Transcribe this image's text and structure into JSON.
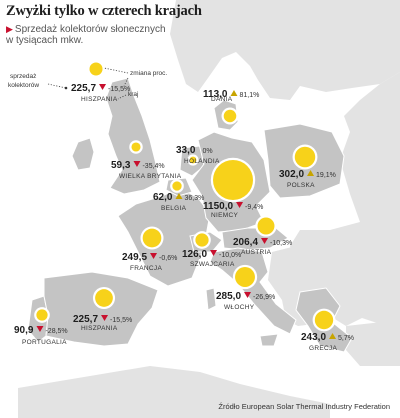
{
  "title": "Zwyżki tylko w czterech krajach",
  "subtitle_line1": "Sprzedaż kolektorów słonecznych",
  "subtitle_line2": "w tysiącach mkw.",
  "source": "Źródło European Solar Thermal Industry  Federation",
  "colors": {
    "sea": "#ffffff",
    "land_neighbor": "#e3e3e3",
    "land_country": "#c4c4c4",
    "bubble": "#f7d21a",
    "bubble_ring": "#ffffff",
    "increase": "#c7a400",
    "decrease": "#c8102e",
    "neutral": "#555555",
    "accent": "#c8102e"
  },
  "legend": {
    "sales_label_line1": "sprzedaż",
    "sales_label_line2": "kolektorów",
    "change_label": "zmiana proc.",
    "country_label": "kraj",
    "example": {
      "country": "HISZPANIA",
      "value": "225,7",
      "change": "-15,5%",
      "direction": "down"
    }
  },
  "map_data": {
    "unit": "tys. mkw.",
    "countries": [
      {
        "name": "DANIA",
        "value": "113,0",
        "change": "81,1%",
        "direction": "up"
      },
      {
        "name": "HOLANDIA",
        "value": "33,0",
        "change": "0%",
        "direction": "none"
      },
      {
        "name": "WIELKA BRYTANIA",
        "value": "59,3",
        "change": "-35,4%",
        "direction": "down"
      },
      {
        "name": "POLSKA",
        "value": "302,0",
        "change": "19,1%",
        "direction": "up"
      },
      {
        "name": "BELGIA",
        "value": "62,0",
        "change": "36,3%",
        "direction": "up"
      },
      {
        "name": "NIEMCY",
        "value": "1150,0",
        "change": "-9,4%",
        "direction": "down"
      },
      {
        "name": "AUSTRIA",
        "value": "206,4",
        "change": "-10,3%",
        "direction": "down"
      },
      {
        "name": "FRANCJA",
        "value": "249,5",
        "change": "-0,6%",
        "direction": "down"
      },
      {
        "name": "SZWAJCARIA",
        "value": "126,0",
        "change": "-10,0%",
        "direction": "down"
      },
      {
        "name": "WŁOCHY",
        "value": "285,0",
        "change": "-26,9%",
        "direction": "down"
      },
      {
        "name": "HISZPANIA",
        "value": "225,7",
        "change": "-15,5%",
        "direction": "down"
      },
      {
        "name": "PORTUGALIA",
        "value": "90,9",
        "change": "-28,5%",
        "direction": "down"
      },
      {
        "name": "GRECJA",
        "value": "243,0",
        "change": "5,7%",
        "direction": "up"
      }
    ]
  }
}
